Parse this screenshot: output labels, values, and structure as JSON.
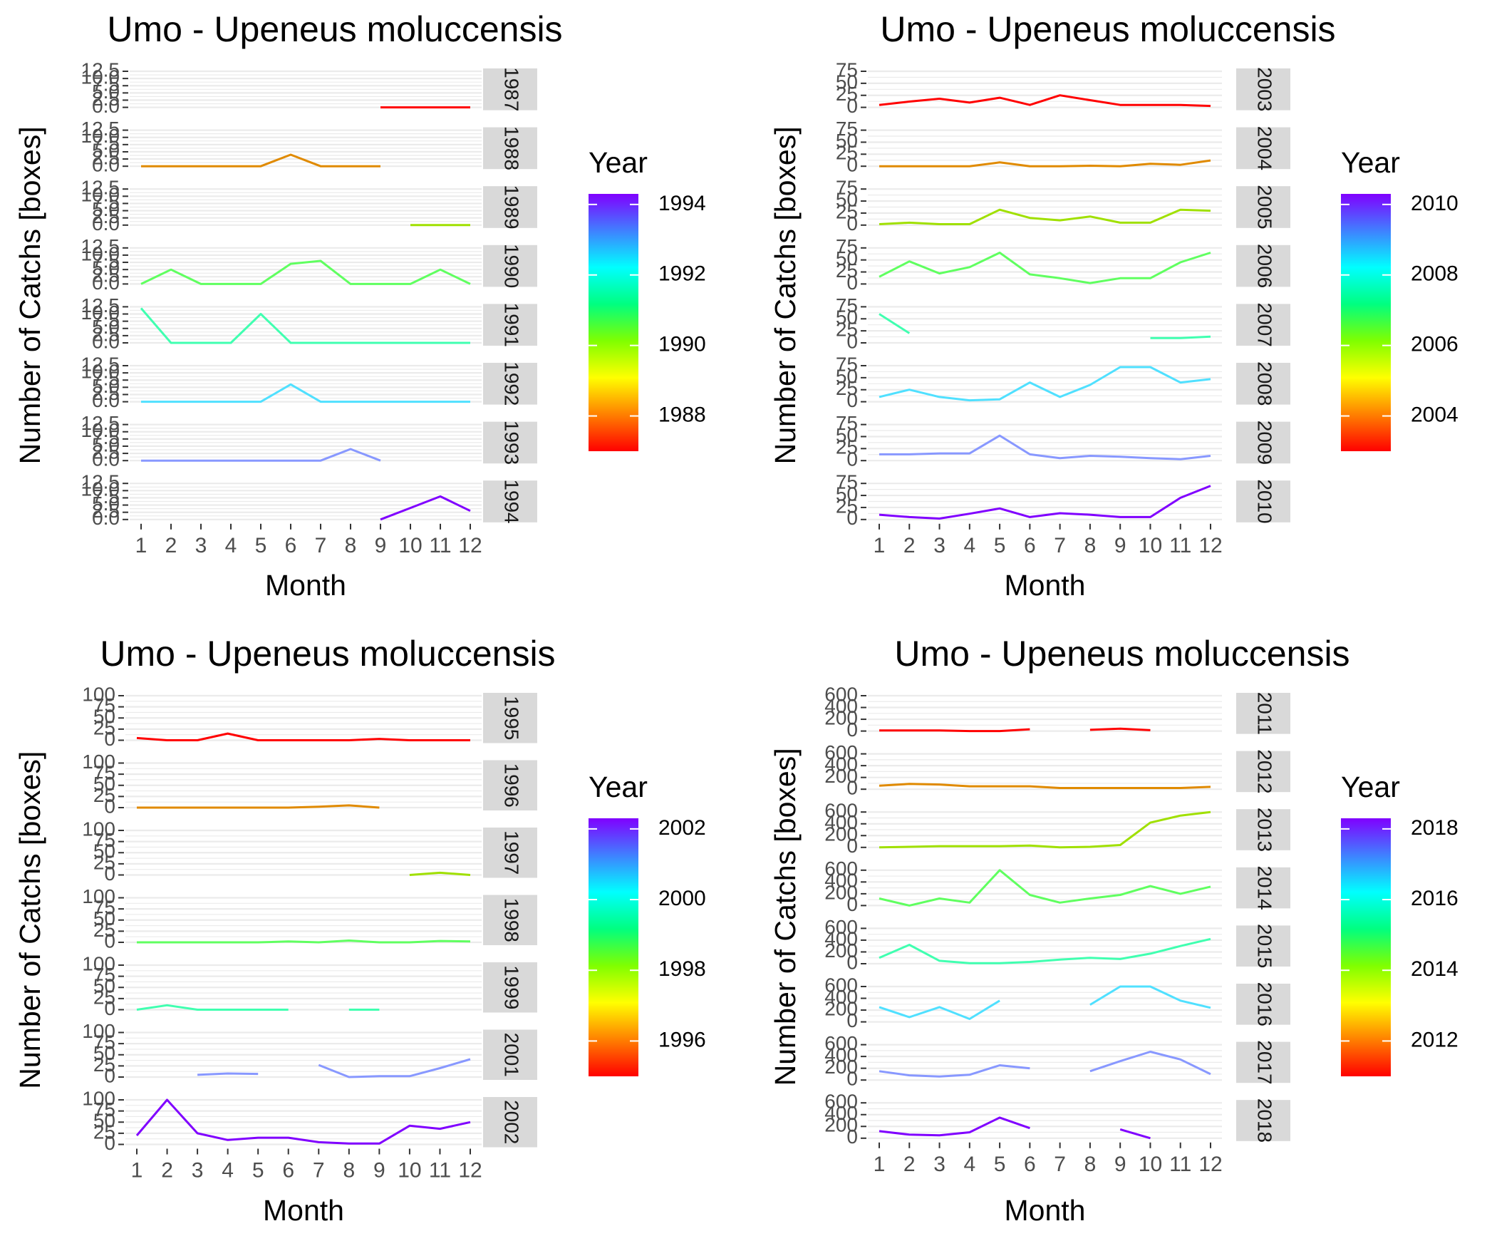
{
  "chart_data": [
    {
      "type": "line",
      "title": "Umo - Upeneus moluccensis",
      "xlabel": "Month",
      "ylabel": "Number of Catchs [boxes]",
      "categories": [
        "1",
        "2",
        "3",
        "4",
        "5",
        "6",
        "7",
        "8",
        "9",
        "10",
        "11",
        "12"
      ],
      "yticks": [
        0,
        2.5,
        5,
        7.5,
        10,
        12.5
      ],
      "ytick_labels": [
        "0.0",
        "2.5",
        "5.0",
        "7.5",
        "10.0",
        "12.5"
      ],
      "ylim": [
        0,
        12.5
      ],
      "legend": {
        "title": "Year",
        "ticks": [
          1988,
          1990,
          1992,
          1994
        ],
        "range": [
          1987,
          1994.3
        ],
        "position": "right"
      },
      "series": [
        {
          "name": "1987",
          "color": "#ff0000",
          "values": [
            null,
            null,
            null,
            null,
            null,
            null,
            null,
            null,
            0,
            0,
            0,
            0
          ]
        },
        {
          "name": "1988",
          "color": "#e08a00",
          "values": [
            0,
            0,
            0,
            0,
            0,
            4,
            0,
            0,
            0,
            null,
            null,
            null
          ]
        },
        {
          "name": "1989",
          "color": "#a0e000",
          "values": [
            null,
            null,
            null,
            null,
            null,
            null,
            null,
            null,
            null,
            0,
            0,
            0
          ]
        },
        {
          "name": "1990",
          "color": "#60ff60",
          "values": [
            0,
            5,
            0,
            0,
            0,
            7,
            8,
            0,
            0,
            0,
            5,
            0
          ]
        },
        {
          "name": "1991",
          "color": "#40ffb0",
          "values": [
            12,
            0,
            0,
            0,
            10,
            0,
            0,
            0,
            0,
            0,
            0,
            0
          ]
        },
        {
          "name": "1992",
          "color": "#50e0ff",
          "values": [
            0,
            0,
            0,
            0,
            0,
            6,
            0,
            0,
            0,
            0,
            0,
            0
          ]
        },
        {
          "name": "1993",
          "color": "#8898ff",
          "values": [
            0,
            0,
            0,
            0,
            0,
            0,
            0,
            4,
            0,
            null,
            null,
            null
          ]
        },
        {
          "name": "1994",
          "color": "#8000ff",
          "values": [
            null,
            null,
            null,
            null,
            null,
            null,
            null,
            null,
            0,
            4,
            8,
            3
          ]
        }
      ]
    },
    {
      "type": "line",
      "title": "Umo - Upeneus moluccensis",
      "xlabel": "Month",
      "ylabel": "Number of Catchs [boxes]",
      "categories": [
        "1",
        "2",
        "3",
        "4",
        "5",
        "6",
        "7",
        "8",
        "9",
        "10",
        "11",
        "12"
      ],
      "yticks": [
        0,
        25,
        50,
        75
      ],
      "ytick_labels": [
        "0",
        "25",
        "50",
        "75"
      ],
      "ylim": [
        0,
        75
      ],
      "legend": {
        "title": "Year",
        "ticks": [
          2004,
          2006,
          2008,
          2010
        ],
        "range": [
          2003,
          2010.3
        ],
        "position": "right"
      },
      "series": [
        {
          "name": "2003",
          "color": "#ff0000",
          "values": [
            5,
            12,
            18,
            10,
            20,
            5,
            25,
            15,
            5,
            5,
            5,
            3
          ]
        },
        {
          "name": "2004",
          "color": "#e08a00",
          "values": [
            0,
            0,
            0,
            0,
            8,
            0,
            0,
            1,
            0,
            5,
            3,
            12
          ]
        },
        {
          "name": "2005",
          "color": "#a0e000",
          "values": [
            2,
            5,
            2,
            2,
            32,
            15,
            10,
            18,
            5,
            5,
            32,
            30
          ]
        },
        {
          "name": "2006",
          "color": "#60ff60",
          "values": [
            15,
            47,
            22,
            35,
            65,
            20,
            12,
            2,
            12,
            12,
            45,
            65
          ]
        },
        {
          "name": "2007",
          "color": "#40ffb0",
          "values": [
            60,
            20,
            null,
            null,
            null,
            null,
            null,
            null,
            null,
            10,
            10,
            13
          ]
        },
        {
          "name": "2008",
          "color": "#50e0ff",
          "values": [
            10,
            25,
            10,
            3,
            5,
            40,
            10,
            35,
            72,
            72,
            40,
            47
          ]
        },
        {
          "name": "2009",
          "color": "#8898ff",
          "values": [
            13,
            13,
            15,
            15,
            52,
            13,
            5,
            10,
            8,
            5,
            3,
            10
          ]
        },
        {
          "name": "2010",
          "color": "#8000ff",
          "values": [
            10,
            5,
            2,
            12,
            23,
            5,
            13,
            10,
            5,
            5,
            45,
            70
          ]
        }
      ]
    },
    {
      "type": "line",
      "title": "Umo - Upeneus moluccensis",
      "xlabel": "Month",
      "ylabel": "Number of Catchs [boxes]",
      "categories": [
        "1",
        "2",
        "3",
        "4",
        "5",
        "6",
        "7",
        "8",
        "9",
        "10",
        "11",
        "12"
      ],
      "yticks": [
        0,
        25,
        50,
        75,
        100
      ],
      "ytick_labels": [
        "0",
        "25",
        "50",
        "75",
        "100"
      ],
      "ylim": [
        0,
        100
      ],
      "legend": {
        "title": "Year",
        "ticks": [
          1996,
          1998,
          2000,
          2002
        ],
        "range": [
          1995,
          2002.3
        ],
        "position": "right"
      },
      "series": [
        {
          "name": "1995",
          "color": "#ff0000",
          "values": [
            5,
            0,
            0,
            15,
            0,
            0,
            0,
            0,
            3,
            0,
            0,
            0
          ]
        },
        {
          "name": "1996",
          "color": "#e08a00",
          "values": [
            0,
            0,
            0,
            0,
            0,
            0,
            2,
            5,
            0,
            null,
            null,
            null
          ]
        },
        {
          "name": "1997",
          "color": "#a0e000",
          "values": [
            null,
            null,
            null,
            null,
            null,
            null,
            null,
            null,
            null,
            0,
            5,
            0
          ]
        },
        {
          "name": "1998",
          "color": "#60ff60",
          "values": [
            0,
            0,
            0,
            0,
            0,
            2,
            0,
            4,
            0,
            0,
            3,
            2
          ]
        },
        {
          "name": "1999",
          "color": "#40ffb0",
          "values": [
            0,
            10,
            0,
            0,
            0,
            0,
            null,
            0,
            0,
            null,
            null,
            null
          ]
        },
        {
          "name": "2001",
          "color": "#8898ff",
          "values": [
            null,
            null,
            5,
            8,
            7,
            null,
            27,
            0,
            2,
            2,
            20,
            40
          ]
        },
        {
          "name": "2002",
          "color": "#8000ff",
          "values": [
            20,
            100,
            25,
            10,
            15,
            15,
            5,
            2,
            2,
            42,
            35,
            50
          ]
        }
      ]
    },
    {
      "type": "line",
      "title": "Umo - Upeneus moluccensis",
      "xlabel": "Month",
      "ylabel": "Number of Catchs [boxes]",
      "categories": [
        "1",
        "2",
        "3",
        "4",
        "5",
        "6",
        "7",
        "8",
        "9",
        "10",
        "11",
        "12"
      ],
      "yticks": [
        0,
        200,
        400,
        600
      ],
      "ytick_labels": [
        "0",
        "200",
        "400",
        "600"
      ],
      "ylim": [
        0,
        600
      ],
      "legend": {
        "title": "Year",
        "ticks": [
          2012,
          2014,
          2016,
          2018
        ],
        "range": [
          2011,
          2018.3
        ],
        "position": "right"
      },
      "series": [
        {
          "name": "2011",
          "color": "#ff0000",
          "values": [
            10,
            10,
            10,
            0,
            0,
            30,
            null,
            20,
            40,
            15,
            null,
            null
          ]
        },
        {
          "name": "2012",
          "color": "#e08a00",
          "values": [
            60,
            90,
            80,
            50,
            50,
            50,
            20,
            20,
            20,
            20,
            20,
            40
          ]
        },
        {
          "name": "2013",
          "color": "#a0e000",
          "values": [
            0,
            10,
            20,
            20,
            20,
            30,
            0,
            10,
            40,
            420,
            540,
            620
          ]
        },
        {
          "name": "2014",
          "color": "#60ff60",
          "values": [
            120,
            0,
            120,
            50,
            600,
            180,
            50,
            120,
            180,
            330,
            200,
            320
          ]
        },
        {
          "name": "2015",
          "color": "#40ffb0",
          "values": [
            100,
            320,
            50,
            10,
            10,
            30,
            70,
            100,
            80,
            170,
            300,
            420
          ]
        },
        {
          "name": "2016",
          "color": "#50e0ff",
          "values": [
            250,
            80,
            250,
            50,
            360,
            null,
            null,
            290,
            680,
            680,
            360,
            240
          ]
        },
        {
          "name": "2017",
          "color": "#8898ff",
          "values": [
            150,
            80,
            60,
            90,
            250,
            200,
            null,
            150,
            320,
            480,
            350,
            100
          ]
        },
        {
          "name": "2018",
          "color": "#8000ff",
          "values": [
            120,
            60,
            50,
            100,
            350,
            170,
            null,
            null,
            150,
            0,
            null,
            null
          ]
        }
      ]
    }
  ]
}
